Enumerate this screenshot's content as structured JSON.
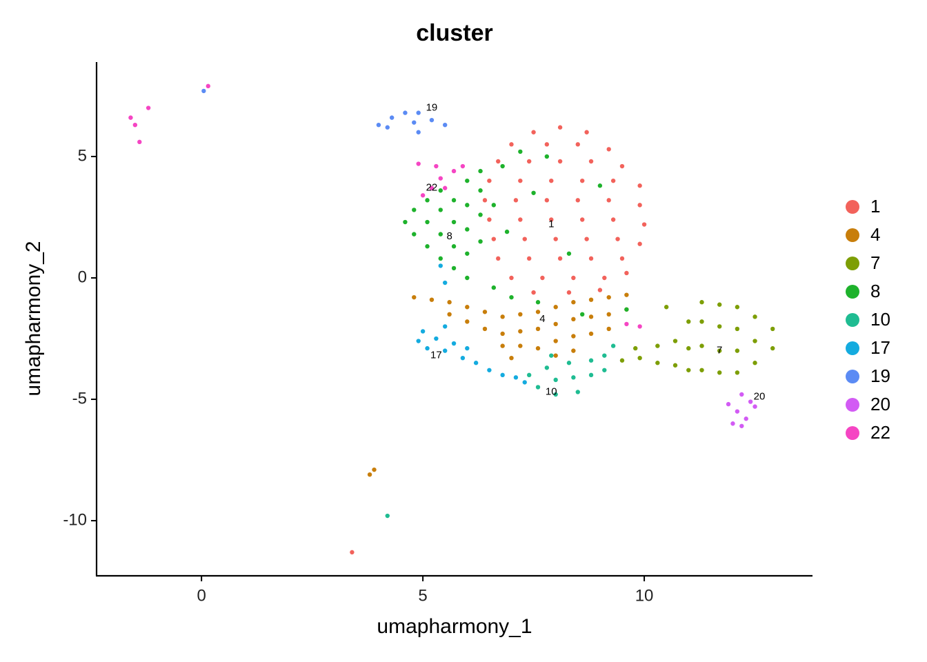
{
  "chart_data": {
    "type": "scatter",
    "title": "cluster",
    "x_label": "umapharmony_1",
    "y_label": "umapharmony_2",
    "xlim": [
      -2.37,
      13.8
    ],
    "ylim": [
      -12.27,
      8.89
    ],
    "xticks": [
      0,
      5,
      10
    ],
    "yticks": [
      -10,
      -5,
      0,
      5
    ],
    "legend": "right",
    "grid": false,
    "series": [
      {
        "name": "1",
        "color": "#F2625B",
        "x": [
          8.1,
          7.5,
          8.7,
          7.0,
          7.8,
          8.5,
          9.2,
          6.7,
          7.4,
          8.1,
          8.8,
          9.5,
          6.5,
          7.2,
          7.9,
          8.6,
          9.3,
          9.9,
          6.4,
          7.1,
          7.8,
          8.5,
          9.2,
          9.9,
          6.5,
          7.2,
          7.9,
          8.6,
          9.3,
          10.0,
          6.6,
          7.3,
          8.0,
          8.7,
          9.4,
          9.9,
          6.7,
          7.4,
          8.1,
          8.8,
          9.5,
          7.0,
          7.7,
          8.4,
          9.1,
          9.6,
          7.5,
          8.3,
          9.0,
          3.4
        ],
        "y": [
          6.2,
          6.0,
          6.0,
          5.5,
          5.5,
          5.5,
          5.3,
          4.8,
          4.8,
          4.8,
          4.8,
          4.6,
          4.0,
          4.0,
          4.0,
          4.0,
          4.0,
          3.8,
          3.2,
          3.2,
          3.2,
          3.2,
          3.2,
          3.0,
          2.4,
          2.4,
          2.4,
          2.4,
          2.4,
          2.2,
          1.6,
          1.6,
          1.6,
          1.6,
          1.6,
          1.4,
          0.8,
          0.8,
          0.8,
          0.8,
          0.8,
          0.0,
          0.0,
          0.0,
          0.0,
          0.2,
          -0.6,
          -0.6,
          -0.5,
          -11.3
        ]
      },
      {
        "name": "4",
        "color": "#C87E0B",
        "x": [
          4.8,
          5.2,
          5.6,
          5.6,
          6.0,
          6.0,
          6.4,
          6.4,
          6.8,
          6.8,
          7.2,
          7.2,
          7.2,
          7.6,
          7.6,
          7.6,
          8.0,
          8.0,
          8.0,
          8.0,
          8.4,
          8.4,
          8.4,
          8.4,
          8.8,
          8.8,
          8.8,
          9.2,
          9.2,
          9.2,
          9.6,
          9.6,
          6.8,
          7.0,
          3.8,
          3.9
        ],
        "y": [
          -0.8,
          -0.9,
          -1.0,
          -1.5,
          -1.2,
          -1.8,
          -1.4,
          -2.1,
          -1.6,
          -2.3,
          -1.5,
          -2.2,
          -2.8,
          -1.4,
          -2.1,
          -2.9,
          -1.2,
          -1.9,
          -2.6,
          -3.2,
          -1.0,
          -1.7,
          -2.4,
          -3.0,
          -0.9,
          -1.6,
          -2.3,
          -0.8,
          -1.5,
          -2.1,
          -0.7,
          -1.3,
          -2.8,
          -3.3,
          -8.1,
          -7.9
        ]
      },
      {
        "name": "7",
        "color": "#7D9E05",
        "x": [
          9.5,
          9.9,
          10.3,
          10.3,
          10.7,
          10.7,
          11.0,
          11.0,
          11.0,
          11.3,
          11.3,
          11.3,
          11.3,
          11.7,
          11.7,
          11.7,
          11.7,
          12.1,
          12.1,
          12.1,
          12.1,
          12.5,
          12.5,
          12.5,
          12.9,
          12.9,
          10.5,
          9.8
        ],
        "y": [
          -3.4,
          -3.3,
          -3.5,
          -2.8,
          -3.6,
          -2.6,
          -3.8,
          -2.9,
          -1.8,
          -3.8,
          -2.8,
          -1.8,
          -1.0,
          -3.9,
          -3.0,
          -2.0,
          -1.1,
          -3.9,
          -3.0,
          -2.1,
          -1.2,
          -3.5,
          -2.6,
          -1.6,
          -2.9,
          -2.1,
          -1.2,
          -2.9
        ]
      },
      {
        "name": "8",
        "color": "#1EB22C",
        "x": [
          4.6,
          4.8,
          4.8,
          5.1,
          5.1,
          5.1,
          5.4,
          5.4,
          5.4,
          5.4,
          5.7,
          5.7,
          5.7,
          5.7,
          6.0,
          6.0,
          6.0,
          6.0,
          6.0,
          6.3,
          6.3,
          6.3,
          6.3,
          6.6,
          6.6,
          6.8,
          7.0,
          7.2,
          7.6,
          6.9,
          7.5,
          8.3,
          9.0,
          7.8,
          9.6,
          8.6
        ],
        "y": [
          2.3,
          1.8,
          2.8,
          1.3,
          2.3,
          3.2,
          0.8,
          1.8,
          2.8,
          3.6,
          0.4,
          1.3,
          2.3,
          3.2,
          0.0,
          1.0,
          2.0,
          3.0,
          4.0,
          1.5,
          2.6,
          3.6,
          4.4,
          -0.4,
          3.0,
          4.6,
          -0.8,
          5.2,
          -1.0,
          1.9,
          3.5,
          1.0,
          3.8,
          5.0,
          -1.3,
          -1.5
        ]
      },
      {
        "name": "10",
        "color": "#1FBC92",
        "x": [
          7.4,
          7.6,
          7.8,
          8.0,
          8.0,
          8.3,
          8.4,
          8.5,
          8.8,
          8.8,
          9.1,
          9.1,
          9.3,
          7.9,
          4.2
        ],
        "y": [
          -4.0,
          -4.5,
          -3.7,
          -4.2,
          -4.8,
          -3.5,
          -4.1,
          -4.7,
          -3.4,
          -4.0,
          -3.2,
          -3.8,
          -2.8,
          -3.2,
          -9.8
        ]
      },
      {
        "name": "17",
        "color": "#14ABDF",
        "x": [
          4.9,
          5.1,
          5.3,
          5.5,
          5.7,
          5.9,
          6.2,
          6.5,
          6.8,
          7.1,
          7.3,
          5.5,
          6.0,
          5.4,
          5.5,
          5.0
        ],
        "y": [
          -2.6,
          -2.9,
          -2.5,
          -3.0,
          -2.7,
          -3.3,
          -3.5,
          -3.8,
          -4.0,
          -4.1,
          -4.3,
          -2.0,
          -2.9,
          0.5,
          -0.2,
          -2.2
        ]
      },
      {
        "name": "19",
        "color": "#5B8BF4",
        "x": [
          4.0,
          4.3,
          4.6,
          4.9,
          5.2,
          5.5,
          4.2,
          4.8,
          4.9,
          0.05
        ],
        "y": [
          6.3,
          6.6,
          6.8,
          6.8,
          6.5,
          6.3,
          6.2,
          6.4,
          6.0,
          7.7
        ]
      },
      {
        "name": "20",
        "color": "#D25BF4",
        "x": [
          12.2,
          12.4,
          12.1,
          12.3,
          12.0,
          12.5,
          11.9,
          12.2
        ],
        "y": [
          -4.8,
          -5.1,
          -5.5,
          -5.8,
          -6.0,
          -5.3,
          -5.2,
          -6.1
        ]
      },
      {
        "name": "22",
        "color": "#F545C3",
        "x": [
          5.0,
          5.2,
          5.4,
          5.7,
          5.9,
          5.5,
          4.9,
          5.3,
          -1.6,
          -1.5,
          -1.4,
          -1.2,
          0.15,
          9.6,
          9.9
        ],
        "y": [
          3.4,
          3.7,
          4.1,
          4.4,
          4.6,
          3.7,
          4.7,
          4.6,
          6.6,
          6.3,
          5.6,
          7.0,
          7.9,
          -1.9,
          -2.0
        ]
      }
    ],
    "labels": [
      {
        "text": "19",
        "x": 5.2,
        "y": 7.0
      },
      {
        "text": "22",
        "x": 5.2,
        "y": 3.7
      },
      {
        "text": "8",
        "x": 5.6,
        "y": 1.7
      },
      {
        "text": "1",
        "x": 7.9,
        "y": 2.2
      },
      {
        "text": "4",
        "x": 7.7,
        "y": -1.7
      },
      {
        "text": "17",
        "x": 5.3,
        "y": -3.2
      },
      {
        "text": "10",
        "x": 7.9,
        "y": -4.7
      },
      {
        "text": "7",
        "x": 11.7,
        "y": -3.0
      },
      {
        "text": "20",
        "x": 12.6,
        "y": -4.9
      }
    ]
  }
}
